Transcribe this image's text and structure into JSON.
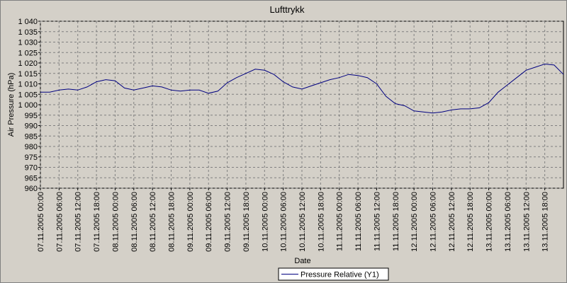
{
  "chart_data": {
    "type": "line",
    "title": "Lufttrykk",
    "x_label": "Date",
    "y_label": "Air Pressure (hPa)",
    "x": [
      "07.11.2005 00:00",
      "07.11.2005 03:00",
      "07.11.2005 06:00",
      "07.11.2005 09:00",
      "07.11.2005 12:00",
      "07.11.2005 15:00",
      "07.11.2005 18:00",
      "07.11.2005 21:00",
      "08.11.2005 00:00",
      "08.11.2005 03:00",
      "08.11.2005 06:00",
      "08.11.2005 09:00",
      "08.11.2005 12:00",
      "08.11.2005 15:00",
      "08.11.2005 18:00",
      "08.11.2005 21:00",
      "09.11.2005 00:00",
      "09.11.2005 03:00",
      "09.11.2005 06:00",
      "09.11.2005 09:00",
      "09.11.2005 12:00",
      "09.11.2005 15:00",
      "09.11.2005 18:00",
      "09.11.2005 21:00",
      "10.11.2005 00:00",
      "10.11.2005 03:00",
      "10.11.2005 06:00",
      "10.11.2005 09:00",
      "10.11.2005 12:00",
      "10.11.2005 15:00",
      "10.11.2005 18:00",
      "10.11.2005 21:00",
      "11.11.2005 00:00",
      "11.11.2005 03:00",
      "11.11.2005 06:00",
      "11.11.2005 09:00",
      "11.11.2005 12:00",
      "11.11.2005 15:00",
      "11.11.2005 18:00",
      "11.11.2005 21:00",
      "12.11.2005 00:00",
      "12.11.2005 03:00",
      "12.11.2005 06:00",
      "12.11.2005 09:00",
      "12.11.2005 12:00",
      "12.11.2005 15:00",
      "12.11.2005 18:00",
      "12.11.2005 21:00",
      "13.11.2005 00:00",
      "13.11.2005 03:00",
      "13.11.2005 06:00",
      "13.11.2005 09:00",
      "13.11.2005 12:00",
      "13.11.2005 15:00",
      "13.11.2005 18:00",
      "13.11.2005 21:00",
      "14.11.2005 00:00"
    ],
    "series": [
      {
        "name": "Pressure Relative (Y1)",
        "color": "#000080",
        "values": [
          1006,
          1006,
          1007,
          1007.5,
          1007,
          1008.5,
          1011,
          1012,
          1011.5,
          1008,
          1007,
          1008,
          1009,
          1008.5,
          1007,
          1006.5,
          1007,
          1007,
          1005.5,
          1006.5,
          1010.5,
          1013,
          1015,
          1017,
          1016.5,
          1014.5,
          1011,
          1008.5,
          1007.5,
          1009,
          1010.5,
          1012,
          1013,
          1014.5,
          1014,
          1013,
          1010,
          1004,
          1000.5,
          999.5,
          997,
          996.5,
          996,
          996.5,
          997.5,
          998,
          998,
          998.5,
          1001,
          1006,
          1009.5,
          1013,
          1016.5,
          1018,
          1019.5,
          1019,
          1014.5
        ]
      }
    ],
    "xlim": [
      "07.11.2005 00:00",
      "14.11.2005 00:00"
    ],
    "xticks": [
      "07.11.2005 00:00",
      "07.11.2005 06:00",
      "07.11.2005 12:00",
      "07.11.2005 18:00",
      "08.11.2005 00:00",
      "08.11.2005 06:00",
      "08.11.2005 12:00",
      "08.11.2005 18:00",
      "09.11.2005 00:00",
      "09.11.2005 06:00",
      "09.11.2005 12:00",
      "09.11.2005 18:00",
      "10.11.2005 00:00",
      "10.11.2005 06:00",
      "10.11.2005 12:00",
      "10.11.2005 18:00",
      "11.11.2005 00:00",
      "11.11.2005 06:00",
      "11.11.2005 12:00",
      "11.11.2005 18:00",
      "12.11.2005 00:00",
      "12.11.2005 06:00",
      "12.11.2005 12:00",
      "12.11.2005 18:00",
      "13.11.2005 00:00",
      "13.11.2005 06:00",
      "13.11.2005 12:00",
      "13.11.2005 18:00"
    ],
    "ylim": [
      960,
      1040
    ],
    "yticks": [
      960,
      965,
      970,
      975,
      980,
      985,
      990,
      995,
      {
        "value": 1000,
        "label": "1 000"
      },
      {
        "value": 1005,
        "label": "1 005"
      },
      {
        "value": 1010,
        "label": "1 010"
      },
      {
        "value": 1015,
        "label": "1 015"
      },
      {
        "value": 1020,
        "label": "1 020"
      },
      {
        "value": 1025,
        "label": "1 025"
      },
      {
        "value": 1030,
        "label": "1 030"
      },
      {
        "value": 1035,
        "label": "1 035"
      },
      {
        "value": 1040,
        "label": "1 040"
      }
    ],
    "grid": true,
    "legend": "bottom"
  }
}
